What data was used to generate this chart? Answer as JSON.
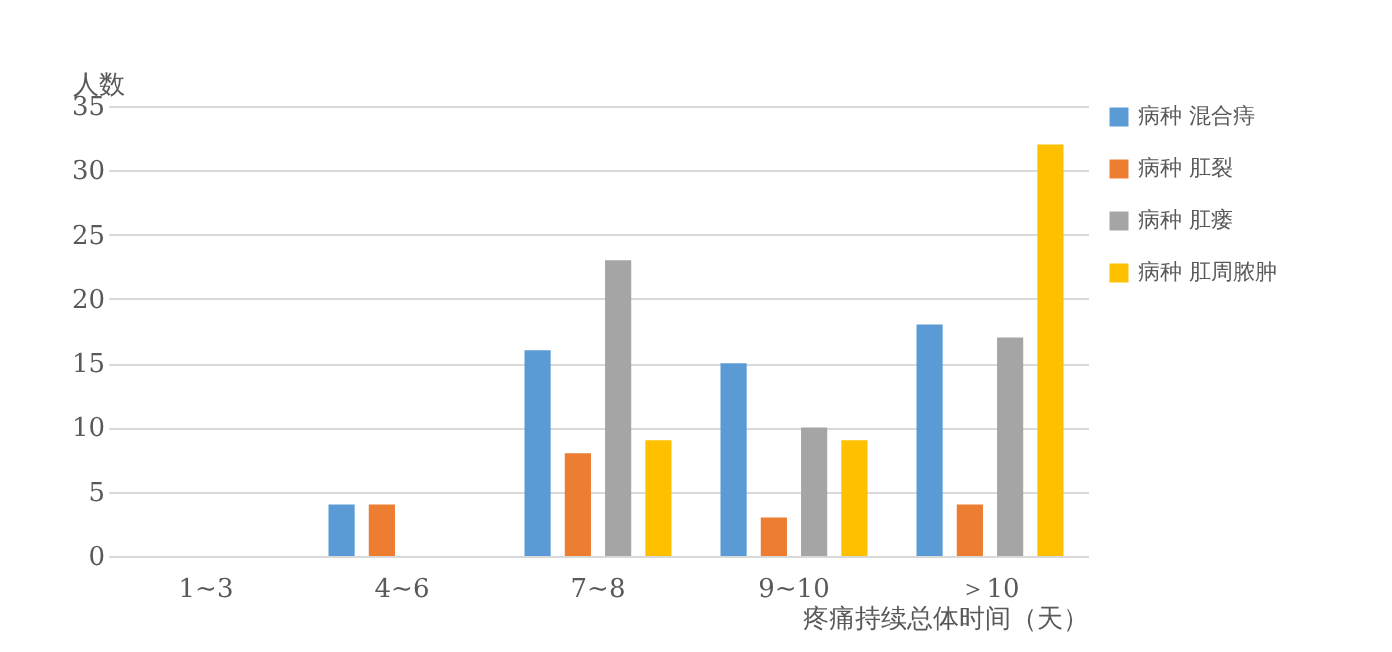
{
  "chart_data": {
    "type": "bar",
    "xlabel": "疼痛持续总体时间（天）",
    "ylabel": "人数",
    "categories": [
      "1~3",
      "4~6",
      "7~8",
      "9~10",
      "＞10"
    ],
    "series": [
      {
        "name": "病种 混合痔",
        "color": "#5b9bd5",
        "values": [
          null,
          4,
          16,
          15,
          18
        ]
      },
      {
        "name": "病种 肛裂",
        "color": "#ed7d31",
        "values": [
          null,
          4,
          8,
          3,
          4
        ]
      },
      {
        "name": "病种 肛瘘",
        "color": "#a5a5a5",
        "values": [
          null,
          null,
          23,
          10,
          17
        ]
      },
      {
        "name": "病种 肛周脓肿",
        "color": "#ffc000",
        "values": [
          null,
          null,
          9,
          9,
          32
        ]
      }
    ],
    "ylim": [
      0,
      35
    ],
    "yticks": [
      0,
      5,
      10,
      15,
      20,
      25,
      30,
      35
    ],
    "grid": "y",
    "legend": "right"
  }
}
